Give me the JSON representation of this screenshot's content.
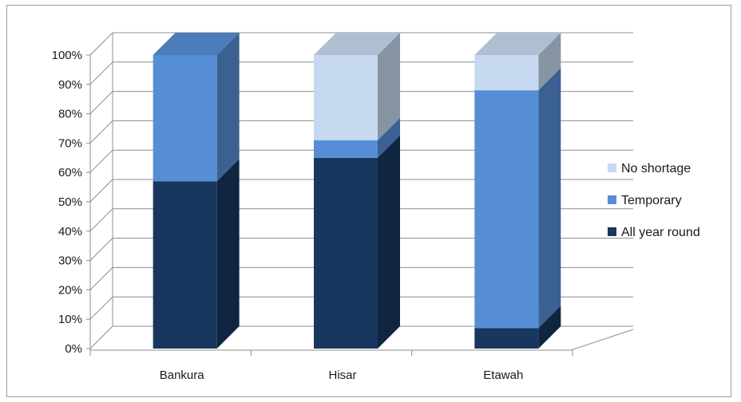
{
  "chart_data": {
    "type": "bar",
    "stacked": true,
    "percent_stacked": true,
    "three_d": true,
    "categories": [
      "Bankura",
      "Hisar",
      "Etawah"
    ],
    "series": [
      {
        "name": "All year round",
        "values": [
          57,
          65,
          7
        ],
        "color": "#17375e"
      },
      {
        "name": "Temporary",
        "values": [
          43,
          6,
          81
        ],
        "color": "#558ed5"
      },
      {
        "name": "No shortage",
        "values": [
          0,
          29,
          12
        ],
        "color": "#c6d9f1"
      }
    ],
    "ylim": [
      0,
      100
    ],
    "y_ticks": [
      "0%",
      "10%",
      "20%",
      "30%",
      "40%",
      "50%",
      "60%",
      "70%",
      "80%",
      "90%",
      "100%"
    ],
    "grid": true,
    "legend_position": "right"
  }
}
